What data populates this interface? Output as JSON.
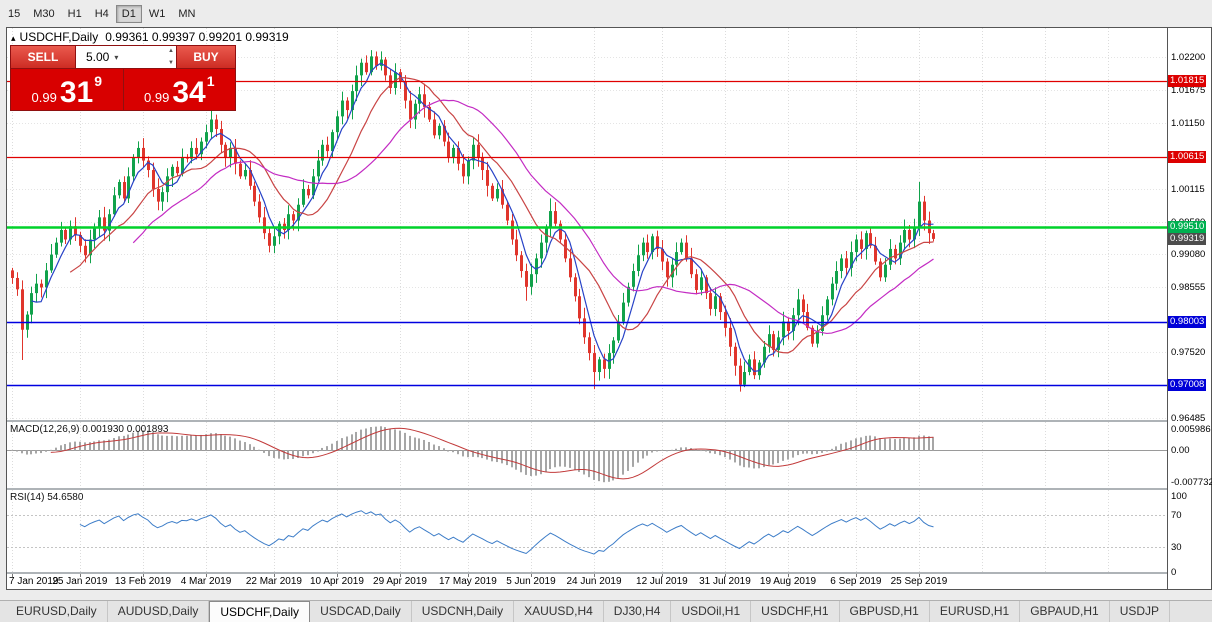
{
  "toolbar": {
    "timeframes": [
      "15",
      "M30",
      "H1",
      "H4",
      "D1",
      "W1",
      "MN"
    ],
    "active": "D1"
  },
  "chart": {
    "collapse_icon": "▴",
    "title": {
      "symbol": "USDCHF,Daily",
      "ohlc": "0.99361 0.99397 0.99201 0.99319"
    }
  },
  "trade_widget": {
    "sell_label": "SELL",
    "buy_label": "BUY",
    "volume": "5.00",
    "dropdown_icon": "▾",
    "spinner_up_icon": "▲",
    "spinner_down_icon": "▼",
    "sell_price": {
      "prefix": "0.99",
      "big": "31",
      "sup": "9"
    },
    "buy_price": {
      "prefix": "0.99",
      "big": "34",
      "sup": "1"
    }
  },
  "indicators": {
    "macd": {
      "label": "MACD(12,26,9) 0.001930 0.001893",
      "axis_top": "0.005986",
      "axis_mid": "0.00",
      "axis_bottom": "-0.007732"
    },
    "rsi": {
      "label": "RSI(14) 54.6580",
      "axis": [
        "100",
        "70",
        "30",
        "0"
      ]
    }
  },
  "price_axis": {
    "plain": [
      {
        "price": 1.022,
        "text": "1.02200"
      },
      {
        "price": 1.01675,
        "text": "1.01675"
      },
      {
        "price": 1.0115,
        "text": "1.01150"
      },
      {
        "price": 1.00115,
        "text": "1.00115"
      },
      {
        "price": 0.9958,
        "text": "0.99580"
      },
      {
        "price": 0.9908,
        "text": "0.99080"
      },
      {
        "price": 0.98555,
        "text": "0.98555"
      },
      {
        "price": 0.9752,
        "text": "0.97520"
      },
      {
        "price": 0.96485,
        "text": "0.96485"
      }
    ],
    "tags": [
      {
        "price": 1.01815,
        "text": "1.01815",
        "bg": "#dd0000"
      },
      {
        "price": 1.00615,
        "text": "1.00615",
        "bg": "#dd0000"
      },
      {
        "price": 0.9951,
        "text": "0.99510",
        "bg": "#00b050"
      },
      {
        "price": 0.99319,
        "text": "0.99319",
        "bg": "#4d4d4d"
      },
      {
        "price": 0.98003,
        "text": "0.98003",
        "bg": "#0000d8"
      },
      {
        "price": 0.97008,
        "text": "0.97008",
        "bg": "#0000d8"
      }
    ]
  },
  "levels": [
    {
      "price": 1.01815,
      "color": "#e00000",
      "lw": 1.2
    },
    {
      "price": 1.00615,
      "color": "#e00000",
      "lw": 1.2
    },
    {
      "price": 0.9951,
      "color": "#00d22a",
      "lw": 2.6
    },
    {
      "price": 0.98003,
      "color": "#0000e0",
      "lw": 1.6
    },
    {
      "price": 0.97008,
      "color": "#0000e0",
      "lw": 1.6
    }
  ],
  "chart_data": {
    "type": "candlestick",
    "symbol": "USDCHF",
    "timeframe": "Daily",
    "ylim": [
      0.9645,
      1.0266
    ],
    "up_color": "#11a24b",
    "down_color": "#e0352c",
    "macd_params": [
      12,
      26,
      9
    ],
    "rsi_period": 14,
    "moving_averages": [
      {
        "period": 5,
        "color": "#2742c7"
      },
      {
        "period": 13,
        "color": "#c94545"
      },
      {
        "period": 26,
        "color": "#c32cc3"
      }
    ],
    "x_labels": [
      {
        "index": 0,
        "text": "7 Jan 2019"
      },
      {
        "index": 14,
        "text": "25 Jan 2019"
      },
      {
        "index": 27,
        "text": "13 Feb 2019"
      },
      {
        "index": 40,
        "text": "4 Mar 2019"
      },
      {
        "index": 54,
        "text": "22 Mar 2019"
      },
      {
        "index": 67,
        "text": "10 Apr 2019"
      },
      {
        "index": 80,
        "text": "29 Apr 2019"
      },
      {
        "index": 94,
        "text": "17 May 2019"
      },
      {
        "index": 107,
        "text": "5 Jun 2019"
      },
      {
        "index": 120,
        "text": "24 Jun 2019"
      },
      {
        "index": 134,
        "text": "12 Jul 2019"
      },
      {
        "index": 147,
        "text": "31 Jul 2019"
      },
      {
        "index": 160,
        "text": "19 Aug 2019"
      },
      {
        "index": 174,
        "text": "6 Sep 2019"
      },
      {
        "index": 187,
        "text": "25 Sep 2019"
      }
    ],
    "closes": [
      0.987,
      0.9852,
      0.9788,
      0.9812,
      0.9846,
      0.9861,
      0.9855,
      0.9882,
      0.9907,
      0.9926,
      0.9946,
      0.9931,
      0.9952,
      0.9938,
      0.9921,
      0.9906,
      0.9931,
      0.995,
      0.9966,
      0.9945,
      0.9971,
      1.0001,
      1.0022,
      0.9996,
      1.0031,
      1.0061,
      1.0076,
      1.0056,
      1.0041,
      1.0011,
      0.9991,
      1.0006,
      1.0031,
      1.0046,
      1.0036,
      1.0061,
      1.0059,
      1.0076,
      1.0066,
      1.0086,
      1.0101,
      1.0121,
      1.0106,
      1.0081,
      1.0061,
      1.0076,
      1.0051,
      1.0031,
      1.0041,
      1.0016,
      0.9991,
      0.9966,
      0.9941,
      0.9921,
      0.9936,
      0.9956,
      0.9946,
      0.9971,
      0.9961,
      0.9986,
      1.0011,
      1.0001,
      1.0031,
      1.0056,
      1.0081,
      1.0071,
      1.0101,
      1.0126,
      1.0151,
      1.0136,
      1.0166,
      1.0191,
      1.0211,
      1.0196,
      1.0221,
      1.0206,
      1.0216,
      1.0191,
      1.0171,
      1.0196,
      1.0181,
      1.0151,
      1.0121,
      1.0146,
      1.0161,
      1.0141,
      1.0121,
      1.0096,
      1.0111,
      1.0086,
      1.0061,
      1.0076,
      1.0051,
      1.0031,
      1.0056,
      1.0081,
      1.0061,
      1.0041,
      1.0016,
      0.9996,
      1.0011,
      0.9986,
      0.9961,
      0.9931,
      0.9906,
      0.9881,
      0.9856,
      0.9876,
      0.9901,
      0.9926,
      0.9951,
      0.9976,
      0.9956,
      0.9931,
      0.9901,
      0.9871,
      0.9841,
      0.9806,
      0.9776,
      0.9751,
      0.9721,
      0.9741,
      0.9726,
      0.9751,
      0.9771,
      0.9801,
      0.9831,
      0.9856,
      0.9881,
      0.9906,
      0.9926,
      0.9911,
      0.9936,
      0.9916,
      0.9896,
      0.9871,
      0.9891,
      0.9911,
      0.9926,
      0.9901,
      0.9876,
      0.9851,
      0.9871,
      0.9846,
      0.9821,
      0.9841,
      0.9816,
      0.9791,
      0.9761,
      0.9731,
      0.9701,
      0.9721,
      0.9741,
      0.9716,
      0.9736,
      0.9761,
      0.9781,
      0.9756,
      0.9776,
      0.9801,
      0.9786,
      0.9811,
      0.9836,
      0.9816,
      0.9791,
      0.9766,
      0.9786,
      0.9811,
      0.9836,
      0.9861,
      0.9881,
      0.9901,
      0.9886,
      0.9911,
      0.9931,
      0.9916,
      0.9941,
      0.9921,
      0.9896,
      0.9871,
      0.9891,
      0.9916,
      0.9901,
      0.9926,
      0.9946,
      0.9931,
      0.9951,
      0.9991,
      0.9961,
      0.9941,
      0.99319
    ],
    "wick_overrides": {
      "2": {
        "low": 0.974
      },
      "41": {
        "high": 1.0136
      },
      "74": {
        "high": 1.0231
      },
      "106": {
        "low": 0.9834
      },
      "111": {
        "high": 0.9996
      },
      "120": {
        "low": 0.9694
      },
      "150": {
        "low": 0.969
      },
      "187": {
        "high": 1.0022
      }
    }
  },
  "tabs": [
    {
      "label": "EURUSD,Daily",
      "active": false
    },
    {
      "label": "AUDUSD,Daily",
      "active": false
    },
    {
      "label": "USDCHF,Daily",
      "active": true
    },
    {
      "label": "USDCAD,Daily",
      "active": false
    },
    {
      "label": "USDCNH,Daily",
      "active": false
    },
    {
      "label": "XAUUSD,H4",
      "active": false
    },
    {
      "label": "DJ30,H4",
      "active": false
    },
    {
      "label": "USDOil,H1",
      "active": false
    },
    {
      "label": "USDCHF,H1",
      "active": false
    },
    {
      "label": "GBPUSD,H1",
      "active": false
    },
    {
      "label": "EURUSD,H1",
      "active": false
    },
    {
      "label": "GBPAUD,H1",
      "active": false
    },
    {
      "label": "USDJP",
      "active": false
    }
  ]
}
